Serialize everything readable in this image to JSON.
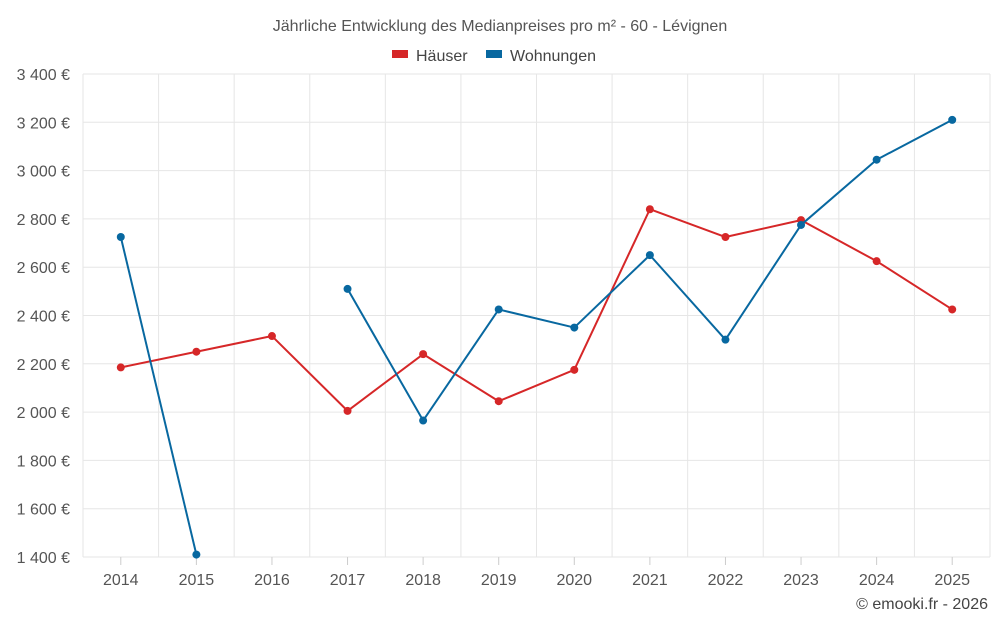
{
  "chart_data": {
    "type": "line",
    "title": "Jährliche Entwicklung des Medianpreises pro m² - 60 - Lévignen",
    "categories": [
      "2014",
      "2015",
      "2016",
      "2017",
      "2018",
      "2019",
      "2020",
      "2021",
      "2022",
      "2023",
      "2024",
      "2025"
    ],
    "ylim": [
      1400,
      3400
    ],
    "yticks": [
      {
        "value": 1400,
        "label": "1 400 €"
      },
      {
        "value": 1600,
        "label": "1 600 €"
      },
      {
        "value": 1800,
        "label": "1 800 €"
      },
      {
        "value": 2000,
        "label": "2 000 €"
      },
      {
        "value": 2200,
        "label": "2 200 €"
      },
      {
        "value": 2400,
        "label": "2 400 €"
      },
      {
        "value": 2600,
        "label": "2 600 €"
      },
      {
        "value": 2800,
        "label": "2 800 €"
      },
      {
        "value": 3000,
        "label": "3 000 €"
      },
      {
        "value": 3200,
        "label": "3 200 €"
      },
      {
        "value": 3400,
        "label": "3 400 €"
      }
    ],
    "grid": true,
    "legend_position": "top-center",
    "series": [
      {
        "name": "Häuser",
        "color": "#d62728",
        "values": [
          2185,
          2250,
          2315,
          2005,
          2240,
          2045,
          2175,
          2840,
          2725,
          2795,
          2625,
          2425
        ]
      },
      {
        "name": "Wohnungen",
        "color": "#0868a0",
        "values": [
          2725,
          1410,
          null,
          2510,
          1965,
          2425,
          2350,
          2650,
          2300,
          2775,
          3045,
          3210
        ]
      }
    ],
    "credit": "© emooki.fr - 2026"
  }
}
